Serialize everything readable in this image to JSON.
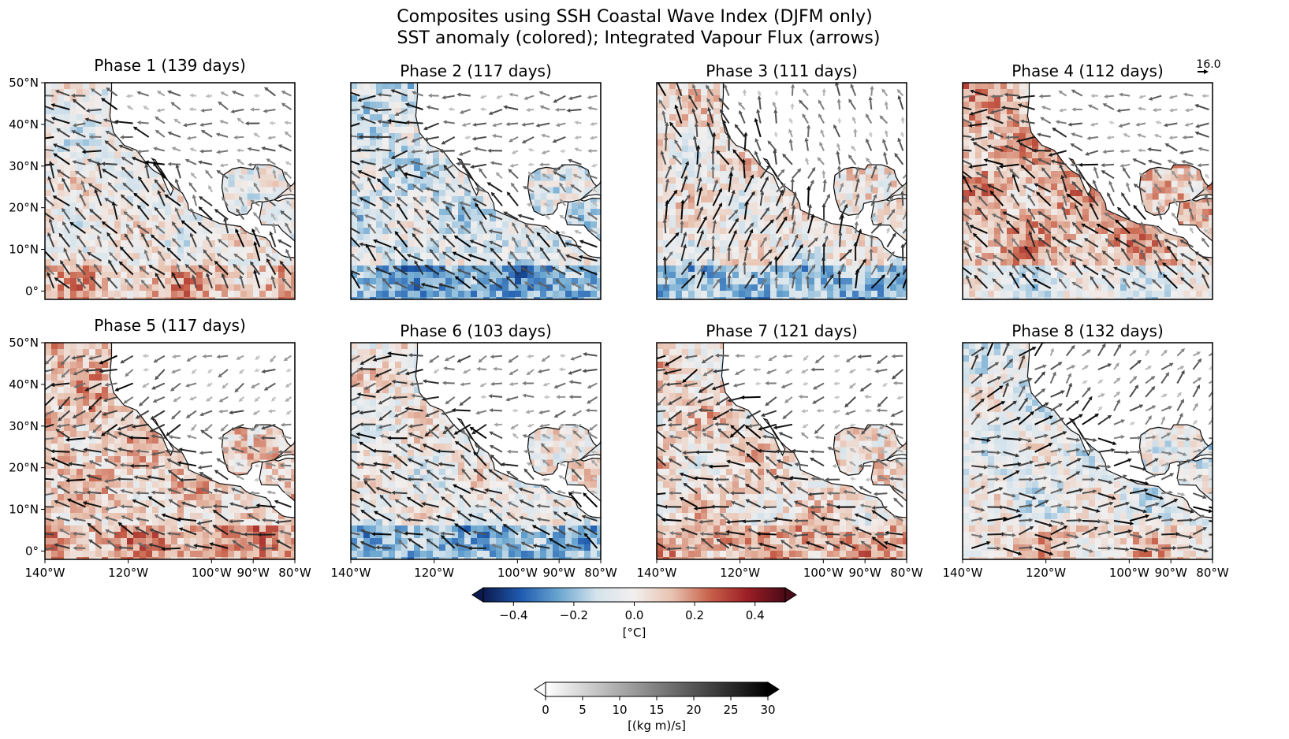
{
  "figure": {
    "title_line1": "Composites using SSH Coastal Wave Index (DJFM only)",
    "title_line2": "SST anomaly (colored); Integrated Vapour Flux (arrows)"
  },
  "panels": [
    {
      "label": "Phase 1 (139 days)",
      "sst_tendency": "negative-north-positive-south"
    },
    {
      "label": "Phase 2 (117 days)",
      "sst_tendency": "negative"
    },
    {
      "label": "Phase 3 (111 days)",
      "sst_tendency": "mixed"
    },
    {
      "label": "Phase 4 (112 days)",
      "sst_tendency": "positive"
    },
    {
      "label": "Phase 5 (117 days)",
      "sst_tendency": "positive"
    },
    {
      "label": "Phase 6 (103 days)",
      "sst_tendency": "mixed"
    },
    {
      "label": "Phase 7 (121 days)",
      "sst_tendency": "mixed"
    },
    {
      "label": "Phase 8 (132 days)",
      "sst_tendency": "negative"
    }
  ],
  "axes": {
    "lat_ticks": [
      "50°N",
      "40°N",
      "30°N",
      "20°N",
      "10°N",
      "0°"
    ],
    "lon_ticks": [
      "140°W",
      "120°W",
      "100°W",
      "90°W",
      "80°W"
    ],
    "lon_range": [
      -140,
      -80
    ],
    "lat_range": [
      -2,
      50
    ]
  },
  "quiver_key": {
    "value": "16.0"
  },
  "colorbars": {
    "sst": {
      "ticks": [
        "−0.4",
        "−0.2",
        "0.0",
        "0.2",
        "0.4"
      ],
      "label": "[°C]",
      "range": [
        -0.5,
        0.5
      ],
      "colors": [
        "#0b1b4f",
        "#1f5bb0",
        "#6aa6d0",
        "#d4e3ec",
        "#f2efee",
        "#e8c2b0",
        "#c8614a",
        "#9c1e25",
        "#4a0a18"
      ]
    },
    "flux": {
      "ticks": [
        "0",
        "5",
        "10",
        "15",
        "20",
        "25",
        "30"
      ],
      "label": "[(kg m)/s]",
      "range": [
        0,
        30
      ],
      "colors": [
        "#ffffff",
        "#000000"
      ]
    }
  }
}
